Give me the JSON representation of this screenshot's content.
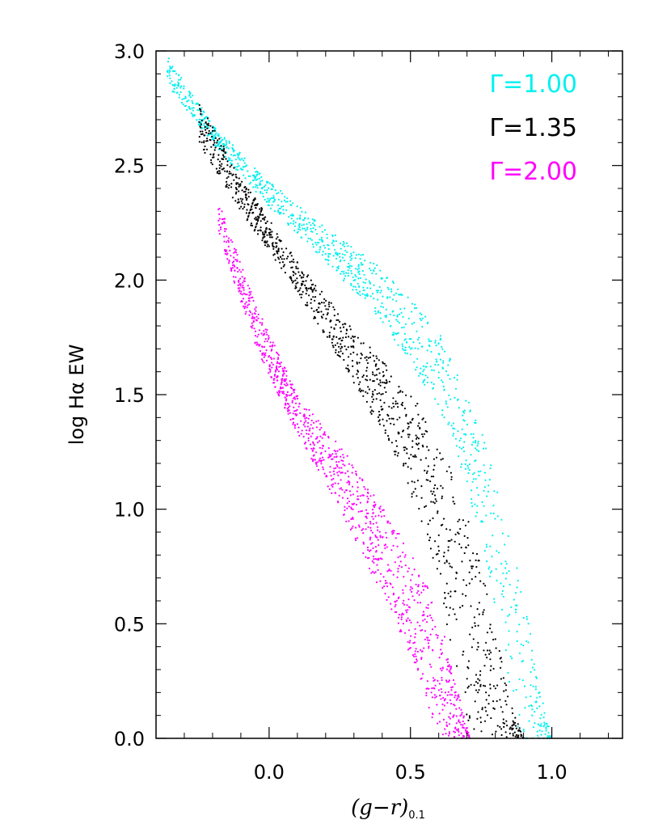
{
  "chart_data": {
    "type": "scatter",
    "xlabel": "(g−r)",
    "xlabel_subscript": "0.1",
    "ylabel": "log Hα EW",
    "xlim": [
      -0.4,
      1.25
    ],
    "ylim": [
      0.0,
      3.0
    ],
    "x_ticks": [
      0.0,
      0.5,
      1.0
    ],
    "x_tick_labels": [
      "0.0",
      "0.5",
      "1.0"
    ],
    "y_ticks": [
      0.0,
      0.5,
      1.0,
      1.5,
      2.0,
      2.5,
      3.0
    ],
    "y_tick_labels": [
      "0.0",
      "0.5",
      "1.0",
      "1.5",
      "2.0",
      "2.5",
      "3.0"
    ],
    "grid": false,
    "legend_position": "top-right",
    "series": [
      {
        "name": "Γ=1.00",
        "color": "#00f0f0",
        "upper_edge": [
          [
            -0.36,
            2.98
          ],
          [
            -0.2,
            2.68
          ],
          [
            0.0,
            2.43
          ],
          [
            0.2,
            2.23
          ],
          [
            0.4,
            2.05
          ],
          [
            0.6,
            1.78
          ],
          [
            0.75,
            1.35
          ],
          [
            0.85,
            0.9
          ],
          [
            0.92,
            0.5
          ],
          [
            0.96,
            0.2
          ],
          [
            1.0,
            0.0
          ]
        ],
        "lower_edge": [
          [
            -0.36,
            2.85
          ],
          [
            -0.2,
            2.6
          ],
          [
            0.0,
            2.32
          ],
          [
            0.2,
            2.08
          ],
          [
            0.4,
            1.82
          ],
          [
            0.6,
            1.45
          ],
          [
            0.7,
            1.1
          ],
          [
            0.78,
            0.7
          ],
          [
            0.83,
            0.35
          ],
          [
            0.87,
            0.1
          ],
          [
            0.89,
            0.0
          ]
        ]
      },
      {
        "name": "Γ=1.35",
        "color": "#000000",
        "upper_edge": [
          [
            -0.25,
            2.78
          ],
          [
            -0.1,
            2.45
          ],
          [
            0.1,
            2.08
          ],
          [
            0.3,
            1.78
          ],
          [
            0.5,
            1.52
          ],
          [
            0.6,
            1.3
          ],
          [
            0.7,
            1.0
          ],
          [
            0.78,
            0.6
          ],
          [
            0.83,
            0.3
          ],
          [
            0.87,
            0.1
          ],
          [
            0.9,
            0.0
          ]
        ],
        "lower_edge": [
          [
            -0.25,
            2.6
          ],
          [
            -0.1,
            2.3
          ],
          [
            0.1,
            1.95
          ],
          [
            0.3,
            1.55
          ],
          [
            0.45,
            1.22
          ],
          [
            0.55,
            0.9
          ],
          [
            0.62,
            0.55
          ],
          [
            0.66,
            0.3
          ],
          [
            0.69,
            0.1
          ],
          [
            0.71,
            0.0
          ]
        ]
      },
      {
        "name": "Γ=2.00",
        "color": "#ff00ff",
        "upper_edge": [
          [
            -0.18,
            2.35
          ],
          [
            -0.05,
            1.9
          ],
          [
            0.1,
            1.5
          ],
          [
            0.3,
            1.2
          ],
          [
            0.45,
            0.92
          ],
          [
            0.55,
            0.7
          ],
          [
            0.62,
            0.45
          ],
          [
            0.66,
            0.25
          ],
          [
            0.69,
            0.1
          ],
          [
            0.71,
            0.0
          ]
        ],
        "lower_edge": [
          [
            -0.18,
            2.2
          ],
          [
            -0.05,
            1.72
          ],
          [
            0.05,
            1.45
          ],
          [
            0.15,
            1.22
          ],
          [
            0.25,
            1.0
          ],
          [
            0.35,
            0.75
          ],
          [
            0.45,
            0.5
          ],
          [
            0.52,
            0.3
          ],
          [
            0.56,
            0.15
          ],
          [
            0.58,
            0.05
          ],
          [
            0.6,
            0.0
          ]
        ]
      }
    ]
  }
}
